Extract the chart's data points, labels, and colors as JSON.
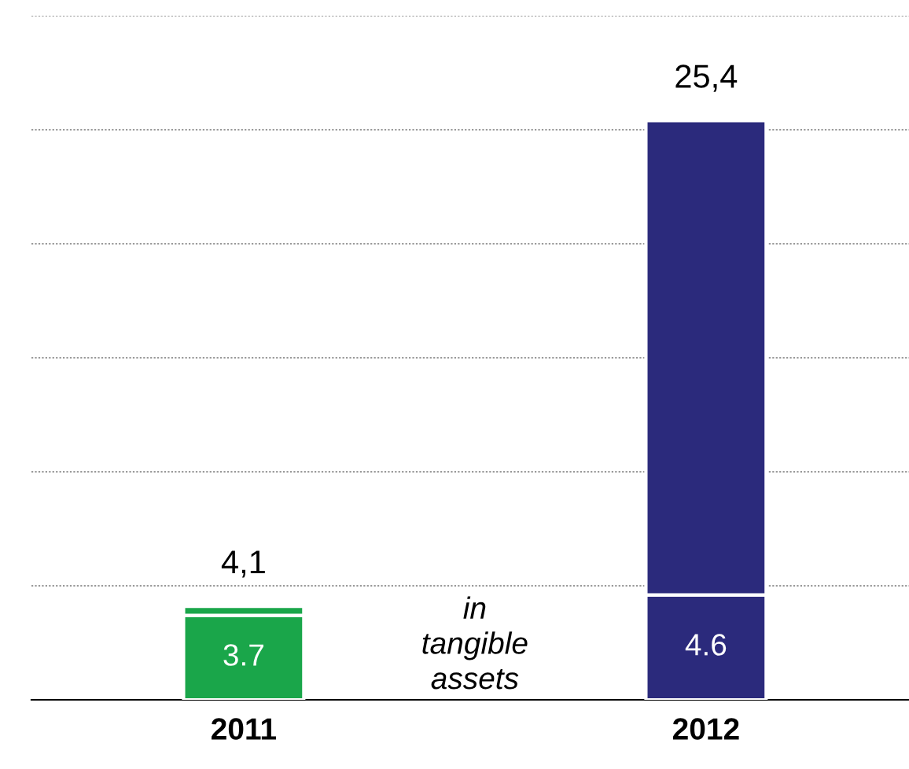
{
  "chart_data": {
    "type": "bar",
    "stacked": true,
    "categories": [
      "2011",
      "2012"
    ],
    "series": [
      {
        "colors": [
          "#1aa64a",
          "#2b2a7c"
        ],
        "values": [
          3.7,
          4.6
        ],
        "value_labels": [
          "3.7",
          "4.6"
        ]
      },
      {
        "colors": [
          "#1aa64a",
          "#2b2a7c"
        ],
        "values": [
          0.4,
          20.8
        ]
      }
    ],
    "totals": [
      "4,1",
      "25,4"
    ],
    "ylim": [
      0,
      30
    ],
    "yticks": [
      {
        "value": 0,
        "label": null
      },
      {
        "value": 5,
        "label": null
      },
      {
        "value": 10,
        "label": null
      },
      {
        "value": 15,
        "label": null
      },
      {
        "value": 20,
        "label": null
      },
      {
        "value": 25,
        "label": null
      },
      {
        "value": 30,
        "label": null
      }
    ],
    "grid": "y",
    "tick_labels": "x",
    "annotations": [
      "in\ntangible\nassets"
    ]
  }
}
